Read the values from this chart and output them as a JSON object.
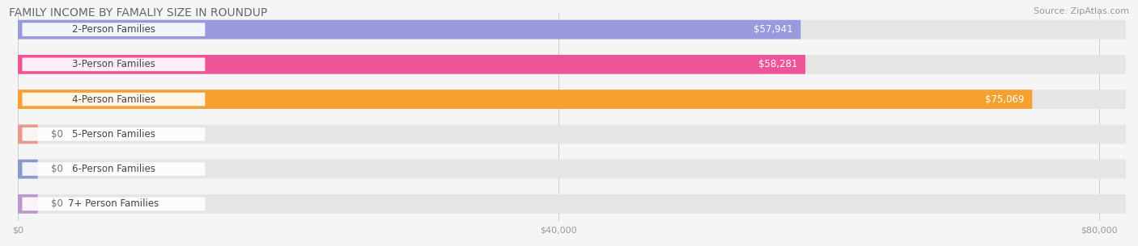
{
  "title": "FAMILY INCOME BY FAMALIY SIZE IN ROUNDUP",
  "source": "Source: ZipAtlas.com",
  "categories": [
    "2-Person Families",
    "3-Person Families",
    "4-Person Families",
    "5-Person Families",
    "6-Person Families",
    "7+ Person Families"
  ],
  "values": [
    57941,
    58281,
    75069,
    0,
    0,
    0
  ],
  "bar_colors": [
    "#9999dd",
    "#ee5599",
    "#f5a030",
    "#e8998d",
    "#8899cc",
    "#bb99cc"
  ],
  "value_labels": [
    "$57,941",
    "$58,281",
    "$75,069",
    "$0",
    "$0",
    "$0"
  ],
  "xlim_max": 82000,
  "xticks": [
    0,
    40000,
    80000
  ],
  "xtick_labels": [
    "$0",
    "$40,000",
    "$80,000"
  ],
  "bg_color": "#f5f5f5",
  "bar_bg_color": "#e5e5e5",
  "title_fontsize": 10,
  "source_fontsize": 8,
  "label_fontsize": 8.5,
  "value_fontsize": 8.5,
  "figsize": [
    14.06,
    3.05
  ],
  "dpi": 100
}
